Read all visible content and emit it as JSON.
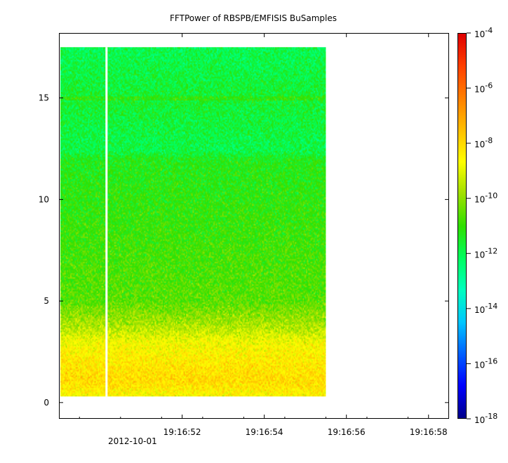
{
  "chart_data": {
    "type": "heatmap",
    "title": "FFTPower of RBSPB/EMFISIS  BuSamples",
    "xlabel": "",
    "ylabel": "",
    "x_range_seconds": [
      49.0,
      58.5
    ],
    "data_coverage_seconds": [
      49.0,
      55.5
    ],
    "gap_seconds": 50.15,
    "ylim": [
      -0.8,
      18.2
    ],
    "y_data_range": [
      0.3,
      17.5
    ],
    "x_tick_labels": [
      "19:16:52",
      "19:16:54",
      "19:16:56",
      "19:16:58"
    ],
    "x_tick_values": [
      52,
      54,
      56,
      58
    ],
    "x_minor_tick_values": [
      49.5,
      50.5,
      51.5,
      52.5,
      53.5,
      54.5,
      55.5,
      56.5,
      57.5
    ],
    "date_label": "2012-10-01",
    "y_ticks": [
      0,
      5,
      10,
      15
    ],
    "colorbar": {
      "scale": "log",
      "range": [
        -18,
        -4
      ],
      "tick_exponents": [
        -4,
        -6,
        -8,
        -10,
        -12,
        -14,
        -16,
        -18
      ],
      "tick_base": "10",
      "colormap": [
        "#00008b",
        "#0000ff",
        "#0060ff",
        "#00c8ff",
        "#00ffc0",
        "#00ff60",
        "#30e000",
        "#a0e000",
        "#ffff00",
        "#ffc000",
        "#ff8000",
        "#ff4000",
        "#e00000"
      ]
    },
    "power_profile_log10": [
      {
        "freq": 0.3,
        "value": -8.6
      },
      {
        "freq": 1.0,
        "value": -8.0
      },
      {
        "freq": 2.0,
        "value": -8.3
      },
      {
        "freq": 3.0,
        "value": -8.8
      },
      {
        "freq": 3.6,
        "value": -9.5
      },
      {
        "freq": 5.0,
        "value": -10.6
      },
      {
        "freq": 8.0,
        "value": -10.9
      },
      {
        "freq": 12.0,
        "value": -11.3
      },
      {
        "freq": 12.4,
        "value": -11.9
      },
      {
        "freq": 15.0,
        "value": -11.6
      },
      {
        "freq": 17.5,
        "value": -12.0
      }
    ]
  }
}
